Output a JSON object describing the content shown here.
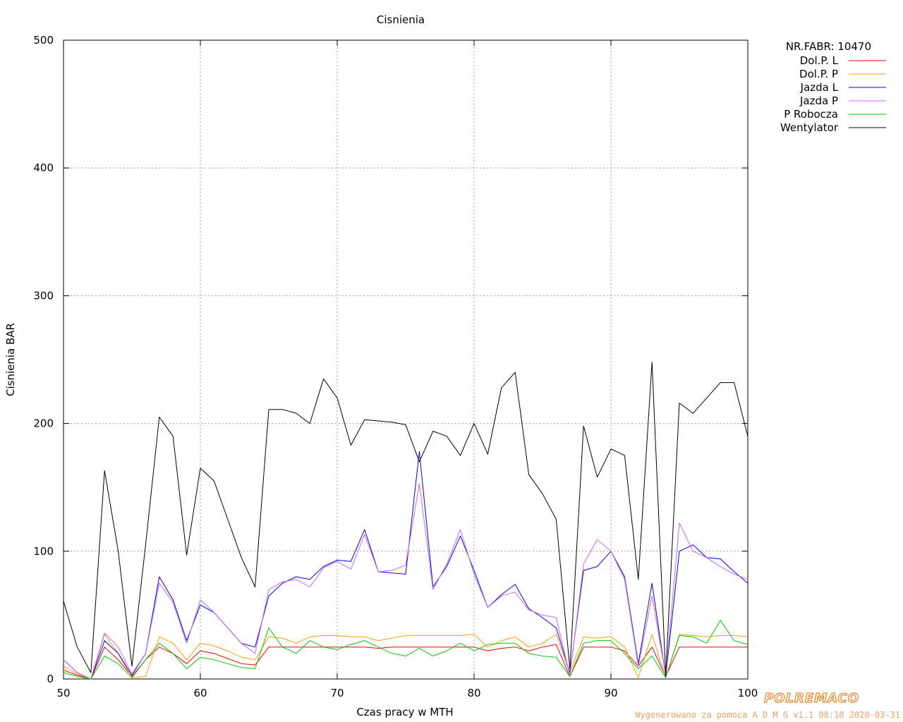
{
  "chart_data": {
    "type": "line",
    "title": "Cisnienia",
    "xlabel": "Czas pracy w MTH",
    "ylabel": "Cisnienia BAR",
    "xlim": [
      50,
      100
    ],
    "ylim": [
      0,
      500
    ],
    "xticks": [
      "50",
      "60",
      "70",
      "80",
      "90",
      "100"
    ],
    "yticks": [
      "0",
      "100",
      "200",
      "300",
      "400",
      "500"
    ],
    "grid": true,
    "legend_position": "outside-right-top",
    "legend_header": "NR.FABR: 10470",
    "series": [
      {
        "name": "Dol.P. L",
        "color": "#ff0000",
        "points": [
          [
            50,
            7
          ],
          [
            51,
            3
          ],
          [
            52,
            0
          ],
          [
            53,
            25
          ],
          [
            54,
            15
          ],
          [
            55,
            2
          ],
          [
            56,
            15
          ],
          [
            57,
            25
          ],
          [
            58,
            20
          ],
          [
            59,
            12
          ],
          [
            60,
            22
          ],
          [
            61,
            20
          ],
          [
            62,
            16
          ],
          [
            63,
            12
          ],
          [
            64,
            11
          ],
          [
            65,
            25
          ],
          [
            66,
            25
          ],
          [
            67,
            25
          ],
          [
            68,
            25
          ],
          [
            69,
            25
          ],
          [
            70,
            25
          ],
          [
            71,
            25
          ],
          [
            72,
            25
          ],
          [
            73,
            24
          ],
          [
            74,
            25
          ],
          [
            75,
            25
          ],
          [
            76,
            25
          ],
          [
            77,
            25
          ],
          [
            78,
            25
          ],
          [
            79,
            25
          ],
          [
            80,
            25
          ],
          [
            81,
            22
          ],
          [
            82,
            24
          ],
          [
            83,
            25
          ],
          [
            84,
            22
          ],
          [
            85,
            25
          ],
          [
            86,
            27
          ],
          [
            87,
            2
          ],
          [
            88,
            25
          ],
          [
            89,
            25
          ],
          [
            90,
            25
          ],
          [
            91,
            22
          ],
          [
            92,
            10
          ],
          [
            93,
            25
          ],
          [
            94,
            2
          ],
          [
            95,
            25
          ],
          [
            96,
            25
          ],
          [
            97,
            25
          ],
          [
            98,
            25
          ],
          [
            99,
            25
          ],
          [
            100,
            25
          ]
        ]
      },
      {
        "name": "Dol.P. P",
        "color": "#ffa000",
        "points": [
          [
            50,
            10
          ],
          [
            51,
            4
          ],
          [
            52,
            0
          ],
          [
            53,
            35
          ],
          [
            54,
            20
          ],
          [
            55,
            1
          ],
          [
            56,
            2
          ],
          [
            57,
            33
          ],
          [
            58,
            28
          ],
          [
            59,
            15
          ],
          [
            60,
            28
          ],
          [
            61,
            26
          ],
          [
            62,
            22
          ],
          [
            63,
            17
          ],
          [
            64,
            15
          ],
          [
            65,
            33
          ],
          [
            66,
            32
          ],
          [
            67,
            28
          ],
          [
            68,
            33
          ],
          [
            69,
            34
          ],
          [
            70,
            34
          ],
          [
            71,
            33
          ],
          [
            72,
            33
          ],
          [
            73,
            30
          ],
          [
            74,
            32
          ],
          [
            75,
            34
          ],
          [
            76,
            34
          ],
          [
            77,
            34
          ],
          [
            78,
            34
          ],
          [
            79,
            34
          ],
          [
            80,
            35
          ],
          [
            81,
            25
          ],
          [
            82,
            30
          ],
          [
            83,
            33
          ],
          [
            84,
            25
          ],
          [
            85,
            28
          ],
          [
            86,
            35
          ],
          [
            87,
            5
          ],
          [
            88,
            33
          ],
          [
            89,
            32
          ],
          [
            90,
            33
          ],
          [
            91,
            25
          ],
          [
            92,
            1
          ],
          [
            93,
            35
          ],
          [
            94,
            1
          ],
          [
            95,
            35
          ],
          [
            96,
            34
          ],
          [
            97,
            33
          ],
          [
            98,
            34
          ],
          [
            99,
            34
          ],
          [
            100,
            33
          ]
        ]
      },
      {
        "name": "Jazda L",
        "color": "#0000ff",
        "points": [
          [
            50,
            15
          ],
          [
            51,
            5
          ],
          [
            52,
            0
          ],
          [
            53,
            30
          ],
          [
            54,
            20
          ],
          [
            55,
            3
          ],
          [
            56,
            20
          ],
          [
            57,
            80
          ],
          [
            58,
            62
          ],
          [
            59,
            30
          ],
          [
            60,
            58
          ],
          [
            61,
            52
          ],
          [
            62,
            40
          ],
          [
            63,
            28
          ],
          [
            64,
            25
          ],
          [
            65,
            65
          ],
          [
            66,
            75
          ],
          [
            67,
            80
          ],
          [
            68,
            78
          ],
          [
            69,
            88
          ],
          [
            70,
            93
          ],
          [
            71,
            92
          ],
          [
            72,
            117
          ],
          [
            73,
            84
          ],
          [
            74,
            83
          ],
          [
            75,
            82
          ],
          [
            76,
            178
          ],
          [
            77,
            72
          ],
          [
            78,
            88
          ],
          [
            79,
            112
          ],
          [
            80,
            85
          ],
          [
            81,
            56
          ],
          [
            82,
            66
          ],
          [
            83,
            74
          ],
          [
            84,
            55
          ],
          [
            85,
            48
          ],
          [
            86,
            40
          ],
          [
            87,
            5
          ],
          [
            88,
            85
          ],
          [
            89,
            88
          ],
          [
            90,
            100
          ],
          [
            91,
            80
          ],
          [
            92,
            12
          ],
          [
            93,
            75
          ],
          [
            94,
            2
          ],
          [
            95,
            100
          ],
          [
            96,
            105
          ],
          [
            97,
            95
          ],
          [
            98,
            94
          ],
          [
            99,
            84
          ],
          [
            100,
            75
          ]
        ]
      },
      {
        "name": "Jazda P",
        "color": "#cc66ff",
        "points": [
          [
            50,
            15
          ],
          [
            51,
            5
          ],
          [
            52,
            0
          ],
          [
            53,
            36
          ],
          [
            54,
            25
          ],
          [
            55,
            4
          ],
          [
            56,
            20
          ],
          [
            57,
            75
          ],
          [
            58,
            60
          ],
          [
            59,
            28
          ],
          [
            60,
            62
          ],
          [
            61,
            52
          ],
          [
            62,
            40
          ],
          [
            63,
            28
          ],
          [
            64,
            20
          ],
          [
            65,
            70
          ],
          [
            66,
            76
          ],
          [
            67,
            78
          ],
          [
            68,
            72
          ],
          [
            69,
            87
          ],
          [
            70,
            92
          ],
          [
            71,
            86
          ],
          [
            72,
            113
          ],
          [
            73,
            84
          ],
          [
            74,
            85
          ],
          [
            75,
            89
          ],
          [
            76,
            153
          ],
          [
            77,
            70
          ],
          [
            78,
            90
          ],
          [
            79,
            117
          ],
          [
            80,
            82
          ],
          [
            81,
            56
          ],
          [
            82,
            65
          ],
          [
            83,
            68
          ],
          [
            84,
            54
          ],
          [
            85,
            50
          ],
          [
            86,
            48
          ],
          [
            87,
            3
          ],
          [
            88,
            90
          ],
          [
            89,
            109
          ],
          [
            90,
            100
          ],
          [
            91,
            78
          ],
          [
            92,
            10
          ],
          [
            93,
            65
          ],
          [
            94,
            3
          ],
          [
            95,
            122
          ],
          [
            96,
            100
          ],
          [
            97,
            95
          ],
          [
            98,
            88
          ],
          [
            99,
            82
          ],
          [
            100,
            78
          ]
        ]
      },
      {
        "name": "P Robocza",
        "color": "#00cc00",
        "points": [
          [
            50,
            5
          ],
          [
            51,
            2
          ],
          [
            52,
            0
          ],
          [
            53,
            18
          ],
          [
            54,
            12
          ],
          [
            55,
            1
          ],
          [
            56,
            15
          ],
          [
            57,
            28
          ],
          [
            58,
            20
          ],
          [
            59,
            8
          ],
          [
            60,
            17
          ],
          [
            61,
            15
          ],
          [
            62,
            12
          ],
          [
            63,
            9
          ],
          [
            64,
            8
          ],
          [
            65,
            40
          ],
          [
            66,
            25
          ],
          [
            67,
            20
          ],
          [
            68,
            30
          ],
          [
            69,
            25
          ],
          [
            70,
            23
          ],
          [
            71,
            27
          ],
          [
            72,
            30
          ],
          [
            73,
            25
          ],
          [
            74,
            20
          ],
          [
            75,
            18
          ],
          [
            76,
            24
          ],
          [
            77,
            18
          ],
          [
            78,
            22
          ],
          [
            79,
            28
          ],
          [
            80,
            22
          ],
          [
            81,
            27
          ],
          [
            82,
            28
          ],
          [
            83,
            28
          ],
          [
            84,
            20
          ],
          [
            85,
            18
          ],
          [
            86,
            17
          ],
          [
            87,
            2
          ],
          [
            88,
            28
          ],
          [
            89,
            30
          ],
          [
            90,
            30
          ],
          [
            91,
            20
          ],
          [
            92,
            8
          ],
          [
            93,
            18
          ],
          [
            94,
            1
          ],
          [
            95,
            34
          ],
          [
            96,
            33
          ],
          [
            97,
            28
          ],
          [
            98,
            46
          ],
          [
            99,
            30
          ],
          [
            100,
            27
          ]
        ]
      },
      {
        "name": "Wentylator",
        "color": "#000000",
        "points": [
          [
            50,
            61
          ],
          [
            51,
            25
          ],
          [
            52,
            5
          ],
          [
            53,
            163
          ],
          [
            54,
            100
          ],
          [
            55,
            10
          ],
          [
            56,
            105
          ],
          [
            57,
            205
          ],
          [
            58,
            190
          ],
          [
            59,
            97
          ],
          [
            60,
            165
          ],
          [
            61,
            155
          ],
          [
            62,
            125
          ],
          [
            63,
            95
          ],
          [
            64,
            72
          ],
          [
            65,
            211
          ],
          [
            66,
            211
          ],
          [
            67,
            208
          ],
          [
            68,
            200
          ],
          [
            69,
            235
          ],
          [
            70,
            220
          ],
          [
            71,
            183
          ],
          [
            72,
            203
          ],
          [
            73,
            202
          ],
          [
            74,
            201
          ],
          [
            75,
            199
          ],
          [
            76,
            170
          ],
          [
            77,
            194
          ],
          [
            78,
            190
          ],
          [
            79,
            175
          ],
          [
            80,
            200
          ],
          [
            81,
            176
          ],
          [
            82,
            228
          ],
          [
            83,
            240
          ],
          [
            84,
            160
          ],
          [
            85,
            145
          ],
          [
            86,
            125
          ],
          [
            87,
            8
          ],
          [
            88,
            198
          ],
          [
            89,
            158
          ],
          [
            90,
            180
          ],
          [
            91,
            175
          ],
          [
            92,
            78
          ],
          [
            93,
            248
          ],
          [
            94,
            3
          ],
          [
            95,
            216
          ],
          [
            96,
            208
          ],
          [
            97,
            220
          ],
          [
            98,
            232
          ],
          [
            99,
            232
          ],
          [
            100,
            190
          ]
        ]
      }
    ]
  },
  "footer": {
    "brand": "POLREMACO",
    "generated": "Wygenerowano za pomoca A D M G v1.1 08:10 2020-03-31"
  }
}
